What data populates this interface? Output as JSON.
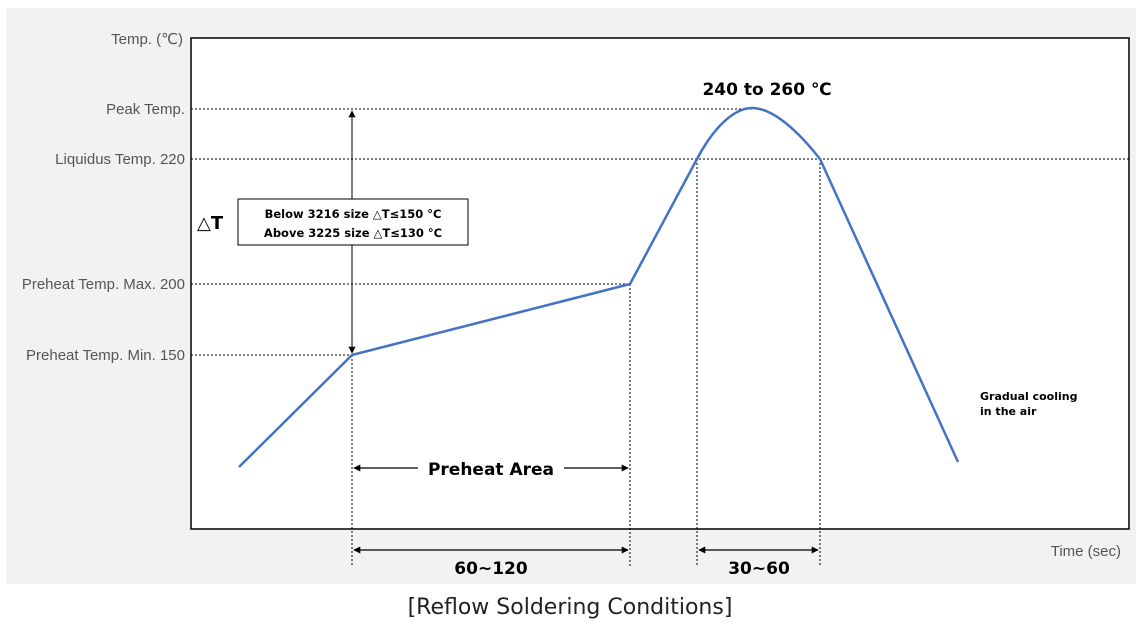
{
  "y_axis_label": "Temp. (℃)",
  "x_axis_label": "Time (sec)",
  "levels": {
    "peak": "Peak Temp.",
    "liquidus": "Liquidus Temp. 220",
    "preheat_max": "Preheat Temp. Max. 200",
    "preheat_min": "Preheat Temp. Min. 150"
  },
  "peak_range_label": "240 to 260 ℃",
  "delta_t": {
    "symbol": "△T",
    "line1": "Below 3216 size △T≤150 °C",
    "line2": "Above 3225 size △T≤130 °C"
  },
  "cooling_note": {
    "line1": "Gradual cooling",
    "line2": "in the air"
  },
  "preheat_area_label": "Preheat Area",
  "preheat_duration_label": "60~120",
  "liquidus_duration_label": "30~60",
  "caption": "[Reflow Soldering Conditions]",
  "colors": {
    "curve": "#4472C4",
    "panel": "#F2F2F2",
    "frame": "#000000"
  }
}
